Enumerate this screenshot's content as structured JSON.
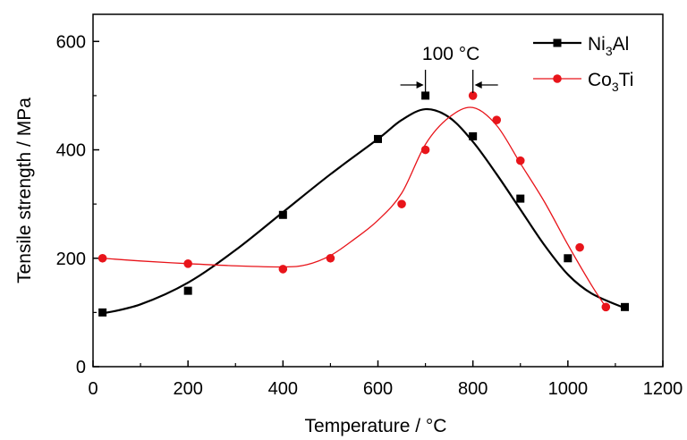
{
  "chart_data": {
    "type": "scatter",
    "xlabel": "Temperature / °C",
    "ylabel": "Tensile strength / MPa",
    "xlim": [
      0,
      1200
    ],
    "ylim": [
      0,
      650
    ],
    "x_ticks": [
      0,
      200,
      400,
      600,
      800,
      1000,
      1200
    ],
    "y_ticks": [
      0,
      200,
      400,
      600
    ],
    "grid": false,
    "legend_position": "top-right",
    "series": [
      {
        "name": "Ni3Al",
        "name_base": "Ni",
        "name_sub": "3",
        "name_rest": "Al",
        "marker": "square",
        "color": "#000000",
        "x": [
          20,
          200,
          400,
          600,
          700,
          800,
          900,
          1000,
          1120
        ],
        "y": [
          100,
          140,
          280,
          420,
          500,
          425,
          310,
          200,
          110
        ],
        "curve_x": [
          20,
          100,
          200,
          300,
          400,
          500,
          600,
          650,
          700,
          750,
          800,
          850,
          900,
          950,
          1000,
          1050,
          1120
        ],
        "curve_y": [
          98,
          115,
          155,
          215,
          285,
          355,
          420,
          455,
          475,
          460,
          415,
          355,
          290,
          225,
          170,
          135,
          108
        ]
      },
      {
        "name": "Co3Ti",
        "name_base": "Co",
        "name_sub": "3",
        "name_rest": "Ti",
        "marker": "circle",
        "color": "#e8141a",
        "x": [
          20,
          200,
          400,
          500,
          650,
          700,
          800,
          850,
          900,
          1025,
          1080
        ],
        "y": [
          200,
          190,
          180,
          200,
          300,
          400,
          500,
          455,
          380,
          220,
          110
        ],
        "curve_x": [
          20,
          100,
          200,
          300,
          400,
          450,
          500,
          550,
          600,
          650,
          700,
          750,
          800,
          850,
          900,
          950,
          1000,
          1050,
          1080
        ],
        "curve_y": [
          200,
          195,
          190,
          186,
          184,
          188,
          205,
          235,
          270,
          320,
          410,
          460,
          478,
          445,
          375,
          305,
          225,
          150,
          110
        ]
      }
    ],
    "annotation": {
      "text": "100 °C",
      "x_left": 700,
      "x_right": 800,
      "y": 500
    }
  }
}
